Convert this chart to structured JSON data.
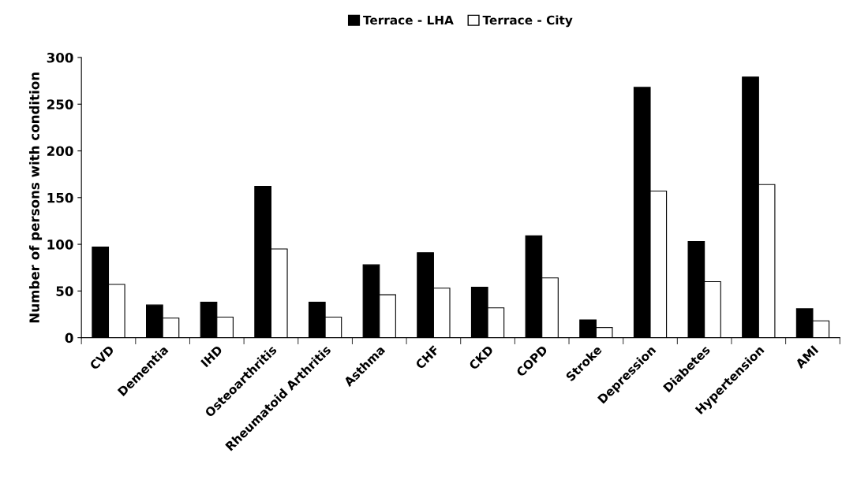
{
  "chart_data": {
    "type": "bar",
    "ylabel": "Number of persons with condition",
    "categories": [
      "CVD",
      "Dementia",
      "IHD",
      "Osteoarthritis",
      "Rheumatoid Arthritis",
      "Asthma",
      "CHF",
      "CKD",
      "COPD",
      "Stroke",
      "Depression",
      "Diabetes",
      "Hypertension",
      "AMI"
    ],
    "series": [
      {
        "name": "Terrace - LHA",
        "color": "#000000",
        "values": [
          97,
          35,
          38,
          162,
          38,
          78,
          91,
          54,
          109,
          19,
          268,
          103,
          279,
          31
        ]
      },
      {
        "name": "Terrace - City",
        "color": "#ffffff",
        "values": [
          57,
          21,
          22,
          95,
          22,
          46,
          53,
          32,
          64,
          11,
          157,
          60,
          164,
          18
        ]
      }
    ],
    "ylim": [
      0,
      300
    ],
    "yticks": [
      0,
      50,
      100,
      150,
      200,
      250,
      300
    ],
    "grid": false,
    "legend": "top"
  }
}
